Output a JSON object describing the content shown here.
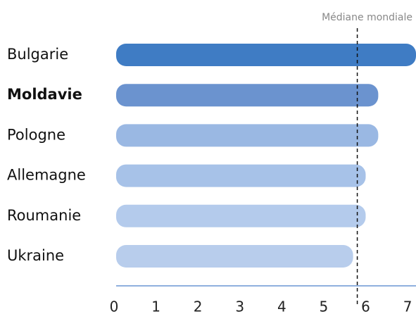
{
  "chart_data": {
    "type": "barh",
    "categories": [
      "Bulgarie",
      "Moldavie",
      "Pologne",
      "Allemagne",
      "Roumanie",
      "Ukraine"
    ],
    "values": [
      7.2,
      6.3,
      6.3,
      6.0,
      6.0,
      5.7
    ],
    "colors": [
      "#3f7cc4",
      "#6b93cf",
      "#9ab8e3",
      "#a7c2e8",
      "#b4cbec",
      "#b8cdec"
    ],
    "bold_category_index": 1,
    "xlim": [
      0,
      7.2
    ],
    "xticks": [
      0,
      1,
      2,
      3,
      4,
      5,
      6,
      7
    ],
    "reference_line": {
      "label": "Médiane mondiale",
      "value": 5.8
    }
  }
}
